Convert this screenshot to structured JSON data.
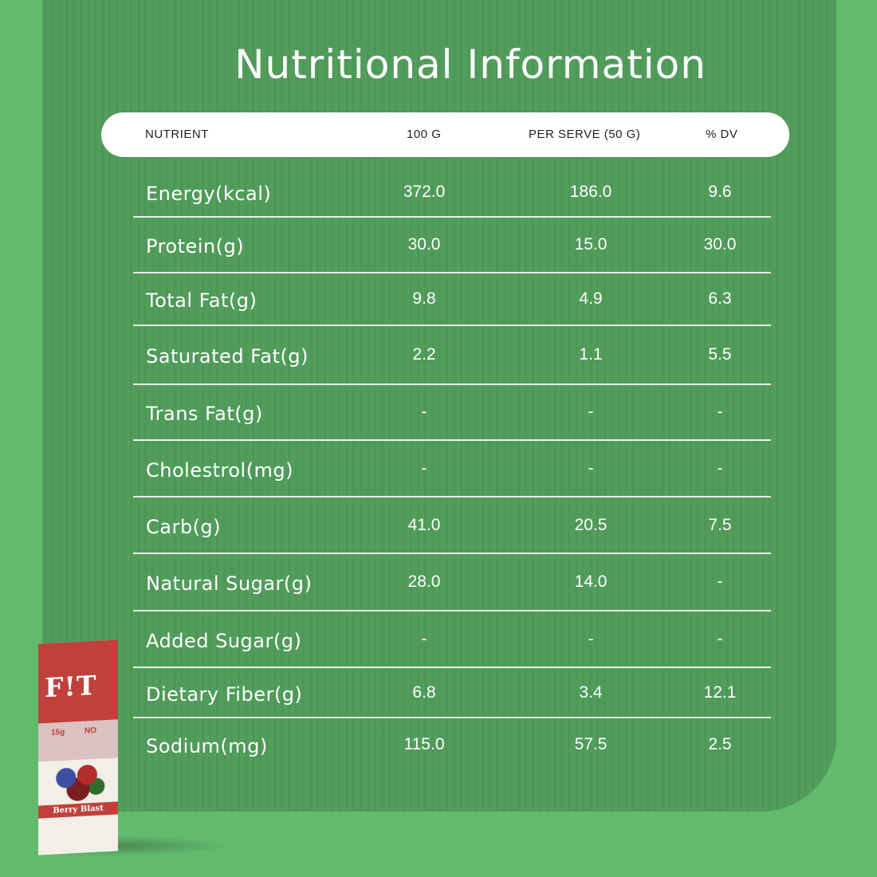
{
  "title": "Nutritional Information",
  "columns": [
    "NUTRIENT",
    "100 G",
    "PER SERVE (50 G)",
    "% DV"
  ],
  "rows": [
    {
      "name": "Energy(kcal)",
      "per100": "372.0",
      "perServe": "186.0",
      "dv": "9.6"
    },
    {
      "name": "Protein(g)",
      "per100": "30.0",
      "perServe": "15.0",
      "dv": "30.0"
    },
    {
      "name": "Total Fat(g)",
      "per100": "9.8",
      "perServe": "4.9",
      "dv": "6.3"
    },
    {
      "name": "Saturated Fat(g)",
      "per100": "2.2",
      "perServe": "1.1",
      "dv": "5.5"
    },
    {
      "name": "Trans Fat(g)",
      "per100": "-",
      "perServe": "-",
      "dv": "-"
    },
    {
      "name": "Cholestrol(mg)",
      "per100": "-",
      "perServe": "-",
      "dv": "-"
    },
    {
      "name": "Carb(g)",
      "per100": "41.0",
      "perServe": "20.5",
      "dv": "7.5"
    },
    {
      "name": "Natural Sugar(g)",
      "per100": "28.0",
      "perServe": "14.0",
      "dv": "-"
    },
    {
      "name": "Added Sugar(g)",
      "per100": "-",
      "perServe": "-",
      "dv": "-"
    },
    {
      "name": "Dietary Fiber(g)",
      "per100": "6.8",
      "perServe": "3.4",
      "dv": "12.1"
    },
    {
      "name": "Sodium(mg)",
      "per100": "115.0",
      "perServe": "57.5",
      "dv": "2.5"
    }
  ],
  "product": {
    "logo": "F!T",
    "tag_protein": "15g",
    "tag_sugar": "NO",
    "flavor": "Berry Blast"
  },
  "colors": {
    "background": "#62bb6c",
    "panel": "#4f9b59",
    "pack_red": "#c0413b"
  }
}
